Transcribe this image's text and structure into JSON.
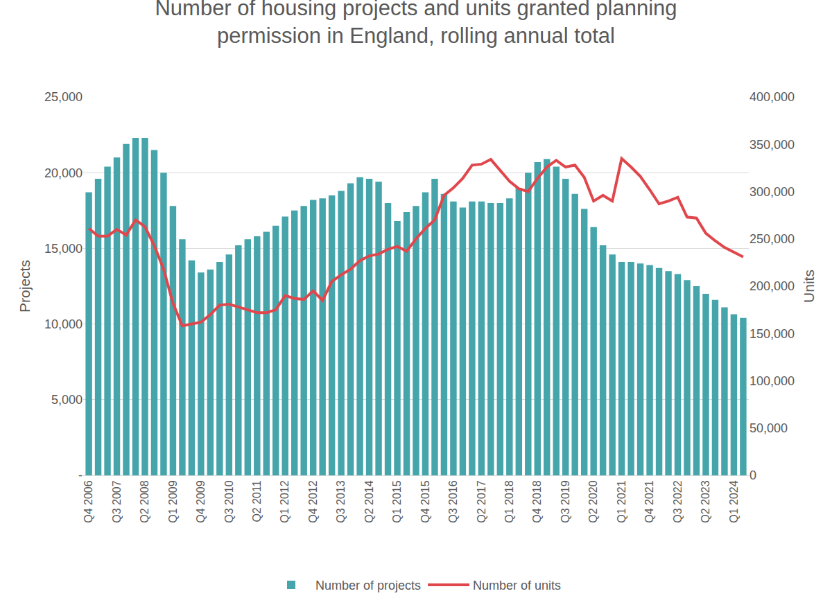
{
  "chart_data": {
    "type": "bar",
    "title": "Number of housing projects and units granted planning permission in England, rolling annual total",
    "y_label": "Projects",
    "y2_label": "Units",
    "categories": [
      "Q4 2006",
      null,
      null,
      "Q3 2007",
      null,
      null,
      "Q2 2008",
      null,
      null,
      "Q1 2009",
      null,
      null,
      "Q4 2009",
      null,
      null,
      "Q3 2010",
      null,
      null,
      "Q2 2011",
      null,
      null,
      "Q1 2012",
      null,
      null,
      "Q4 2012",
      null,
      null,
      "Q3 2013",
      null,
      null,
      "Q2 2014",
      null,
      null,
      "Q1 2015",
      null,
      null,
      "Q4 2015",
      null,
      null,
      "Q3 2016",
      null,
      null,
      "Q2 2017",
      null,
      null,
      "Q1 2018",
      null,
      null,
      "Q4 2018",
      null,
      null,
      "Q3 2019",
      null,
      null,
      "Q2 2020",
      null,
      null,
      "Q1 2021",
      null,
      null,
      "Q4 2021",
      null,
      null,
      "Q3 2022",
      null,
      null,
      "Q2 2023",
      null,
      null,
      "Q1 2024",
      null
    ],
    "series": [
      {
        "name": "Number of projects",
        "type": "bar",
        "color": "#45a5ab",
        "values": [
          18700,
          19600,
          20400,
          21000,
          21900,
          22300,
          22300,
          21500,
          20000,
          17800,
          15600,
          14200,
          13400,
          13600,
          14100,
          14600,
          15200,
          15600,
          15800,
          16100,
          16500,
          17100,
          17500,
          17800,
          18200,
          18300,
          18500,
          18800,
          19300,
          19700,
          19600,
          19400,
          18000,
          16800,
          17400,
          17800,
          18700,
          19600,
          18600,
          18100,
          17700,
          18100,
          18100,
          18000,
          18000,
          18300,
          19000,
          20000,
          20700,
          20900,
          20400,
          19600,
          18600,
          17600,
          16400,
          15200,
          14600,
          14100,
          14100,
          14000,
          13900,
          13700,
          13500,
          13300,
          12900,
          12500,
          12000,
          11600,
          11100,
          10650,
          10400
        ]
      },
      {
        "name": "Number of units",
        "type": "line",
        "axis": "y2",
        "color": "#e0474c",
        "values": [
          261000,
          253000,
          253000,
          260000,
          254000,
          270000,
          263000,
          243000,
          218000,
          182000,
          158000,
          160000,
          162000,
          170000,
          180000,
          181000,
          178000,
          175000,
          172000,
          172000,
          175000,
          190000,
          187000,
          186000,
          195000,
          185000,
          205000,
          212000,
          218000,
          227000,
          232000,
          234000,
          239000,
          242000,
          237000,
          250000,
          261000,
          270000,
          296000,
          304000,
          314000,
          328000,
          329000,
          334000,
          323000,
          311000,
          303000,
          300000,
          314000,
          326000,
          333000,
          326000,
          328000,
          315000,
          290000,
          296000,
          290000,
          335000,
          326000,
          316000,
          302000,
          287000,
          290000,
          294000,
          273000,
          272000,
          256000,
          248000,
          241000,
          236000,
          231000
        ]
      }
    ],
    "ylim": [
      0,
      25000
    ],
    "yticks": [
      {
        "value": 0,
        "label": "-"
      },
      {
        "value": 5000,
        "label": "5,000"
      },
      {
        "value": 10000,
        "label": "10,000"
      },
      {
        "value": 15000,
        "label": "15,000"
      },
      {
        "value": 20000,
        "label": "20,000"
      },
      {
        "value": 25000,
        "label": "25,000"
      }
    ],
    "y2lim": [
      0,
      400000
    ],
    "y2ticks": [
      0,
      {
        "value": 50000,
        "label": "50,000"
      },
      {
        "value": 100000,
        "label": "100,000"
      },
      {
        "value": 150000,
        "label": "150,000"
      },
      {
        "value": 200000,
        "label": "200,000"
      },
      {
        "value": 250000,
        "label": "250,000"
      },
      {
        "value": 300000,
        "label": "300,000"
      },
      {
        "value": 350000,
        "label": "350,000"
      },
      {
        "value": 400000,
        "label": "400,000"
      }
    ],
    "grid": true,
    "legend": "bottom"
  }
}
